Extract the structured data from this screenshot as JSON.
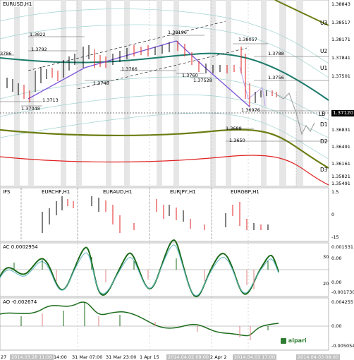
{
  "symbol_title": "EURUSD,H1",
  "price_scale": [
    "1.38843",
    "1.38517",
    "1.38171",
    "1.37841",
    "1.37501",
    "1.37120",
    "1.36831",
    "1.36491",
    "1.36161",
    "1.35821",
    "1.35491"
  ],
  "current_price": "1.37120",
  "levels": [
    {
      "label": "U3"
    },
    {
      "label": "U2"
    },
    {
      "label": "U1"
    },
    {
      "label": "LB"
    },
    {
      "label": "D1"
    },
    {
      "label": "D2"
    },
    {
      "label": "D3"
    }
  ],
  "annotations": [
    "1.3822",
    "1.38196",
    "1.3792",
    "1.38057",
    "1.3786",
    "1.3788",
    "1.3766",
    "1.3760",
    "1.3748",
    "1.37528",
    "1.3756",
    "1.3713",
    "1.37048",
    "1.3688",
    "1.36976",
    "1.3650"
  ],
  "left_edge_label": "3786",
  "mini_panel": {
    "left_title": "IFS",
    "titles": [
      "EURCHF,H1",
      "EURAUD,H1",
      "EURJPY,H1",
      "EURGBP,H1"
    ],
    "scale": [
      "1.5",
      "0",
      "-15"
    ]
  },
  "ac_panel": {
    "title": "AC 0.0002954",
    "scale": [
      "0.001531",
      "0.00",
      "0.00",
      "-0.001730"
    ],
    "left_marks": [
      "30",
      "20"
    ]
  },
  "ao_panel": {
    "title": "AO -0.002674",
    "scale": [
      "0.004255",
      "0.00",
      "-0.005054"
    ]
  },
  "time_axis": [
    "27",
    "2014.03.28 11:00",
    "14:00",
    "31 Mar 07:00",
    "31 Mar 23:00",
    "1 Apr 15",
    "2014.04.02 09:00",
    "2 Apr 2",
    "2014.04.03 17:00",
    "2014.04.03 08:00"
  ],
  "logo_text": "alpari",
  "colors": {
    "bull": "#000000",
    "bear": "#ff0000",
    "ma_teal": "#1b7a6b",
    "ma_olive": "#6b7d12",
    "ma_red": "#e02020",
    "purple": "#7b52d8",
    "ac_line": "#1a6b1a"
  }
}
